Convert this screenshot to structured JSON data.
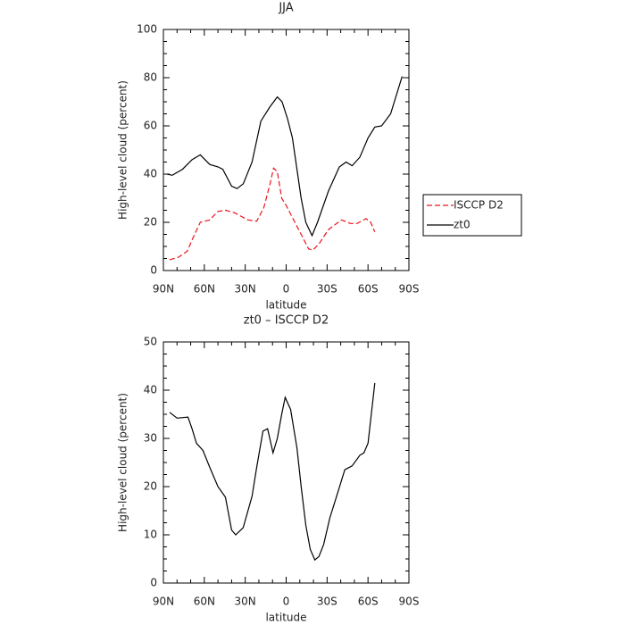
{
  "chart_data": [
    {
      "type": "line",
      "title": "JJA",
      "xlabel": "latitude",
      "ylabel": "High-level cloud (percent)",
      "xlim": [
        90,
        -90
      ],
      "ylim": [
        0,
        100
      ],
      "xticks": [
        {
          "value": 90,
          "label": "90N"
        },
        {
          "value": 60,
          "label": "60N"
        },
        {
          "value": 30,
          "label": "30N"
        },
        0,
        {
          "value": -30,
          "label": "30S"
        },
        {
          "value": -60,
          "label": "60S"
        },
        {
          "value": -90,
          "label": "90S"
        }
      ],
      "yticks": [
        0,
        20,
        40,
        60,
        80,
        100
      ],
      "legend": "right",
      "series": [
        {
          "name": "ISCCP D2",
          "color": "#e8141c",
          "dash": true,
          "x": [
            85.5,
            79,
            72.5,
            68.7,
            63,
            56,
            50,
            44.5,
            38,
            28,
            21.6,
            16.4,
            11.8,
            9.2,
            6.5,
            3.3,
            0,
            -4.6,
            -11,
            -16.4,
            -19.6,
            -24,
            -31,
            -40.5,
            -47,
            -52,
            -58.6,
            -62,
            -65
          ],
          "values": [
            4.5,
            5.5,
            8,
            13,
            20,
            21,
            24.5,
            25,
            24,
            21,
            20.5,
            26,
            36,
            42.5,
            41,
            30,
            27,
            22,
            15,
            9,
            8.5,
            11,
            17,
            21,
            19.5,
            19.5,
            21.5,
            20,
            16
          ]
        },
        {
          "name": "zt0",
          "color": "#000000",
          "dash": false,
          "x": [
            87.4,
            83.5,
            76,
            69,
            63,
            56,
            50,
            46.5,
            40,
            36,
            31.4,
            25,
            18.5,
            11.8,
            6.5,
            3,
            -1,
            -4.6,
            -11,
            -14.4,
            -19,
            -23,
            -31,
            -39,
            -44,
            -48.4,
            -54,
            -60,
            -65,
            -70,
            -76.6,
            -85
          ],
          "values": [
            40,
            39.5,
            42,
            46,
            48,
            44,
            43,
            42,
            35,
            34,
            36,
            45,
            62,
            68,
            72,
            70,
            63,
            55,
            30,
            20,
            14.5,
            20,
            33,
            43,
            45,
            43.5,
            47,
            55,
            59.5,
            60,
            65,
            80.5
          ]
        }
      ]
    },
    {
      "type": "line",
      "title": "zt0 – ISCCP D2",
      "xlabel": "latitude",
      "ylabel": "High-level cloud (percent)",
      "xlim": [
        90,
        -90
      ],
      "ylim": [
        0,
        50
      ],
      "xticks": [
        {
          "value": 90,
          "label": "90N"
        },
        {
          "value": 60,
          "label": "60N"
        },
        {
          "value": 30,
          "label": "30N"
        },
        0,
        {
          "value": -30,
          "label": "30S"
        },
        {
          "value": -60,
          "label": "60S"
        },
        {
          "value": -90,
          "label": "90S"
        }
      ],
      "yticks": [
        0,
        10,
        20,
        30,
        40,
        50
      ],
      "series": [
        {
          "color": "#000000",
          "dash": false,
          "x": [
            85.4,
            80,
            72,
            69,
            65.8,
            61,
            56,
            50,
            44.5,
            40,
            37,
            31.5,
            25,
            21.6,
            17,
            13.6,
            9.6,
            6.5,
            3.3,
            0.7,
            -3.3,
            -7.9,
            -11,
            -14.4,
            -17.7,
            -21,
            -24,
            -27.5,
            -32,
            -37,
            -43,
            -48.4,
            -54,
            -57,
            -60,
            -65
          ],
          "values": [
            35.4,
            34.2,
            34.4,
            32,
            29,
            27.5,
            24,
            20,
            17.8,
            11,
            10,
            11.5,
            18,
            24,
            31.5,
            32,
            27,
            30,
            35,
            38.5,
            36,
            28,
            20,
            12,
            7,
            4.8,
            5.5,
            8,
            13.5,
            18,
            23.5,
            24.3,
            26.5,
            27,
            29,
            41.5
          ]
        }
      ]
    }
  ]
}
